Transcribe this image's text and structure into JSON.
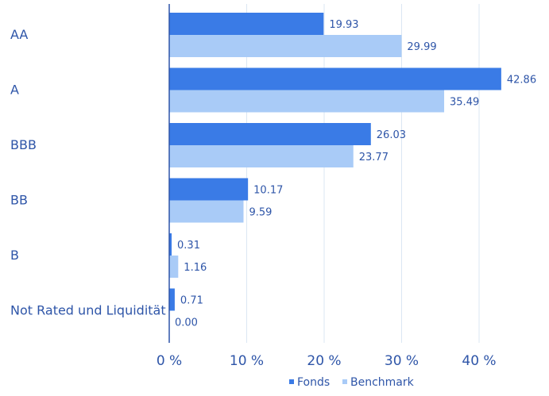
{
  "chart_data": {
    "type": "bar",
    "orientation": "horizontal",
    "categories": [
      "AA",
      "A",
      "BBB",
      "BB",
      "B",
      "Not Rated und Liquidität"
    ],
    "series": [
      {
        "name": "Fonds",
        "color": "#3a7be6",
        "values": [
          19.93,
          42.86,
          26.03,
          10.17,
          0.31,
          0.71
        ],
        "labels": [
          "19.93",
          "42.86",
          "26.03",
          "10.17",
          "0.31",
          "0.71"
        ]
      },
      {
        "name": "Benchmark",
        "color": "#a9cbf7",
        "values": [
          29.99,
          35.49,
          23.77,
          9.59,
          1.16,
          0.0
        ],
        "labels": [
          "29.99",
          "35.49",
          "23.77",
          "9.59",
          "1.16",
          "0.00"
        ]
      }
    ],
    "xlim": [
      0,
      45
    ],
    "xticks": [
      0,
      10,
      20,
      30,
      40
    ],
    "xtick_labels": [
      "0 %",
      "10 %",
      "20 %",
      "30 %",
      "40 %"
    ],
    "grid": true,
    "legend_position": "bottom-right"
  }
}
